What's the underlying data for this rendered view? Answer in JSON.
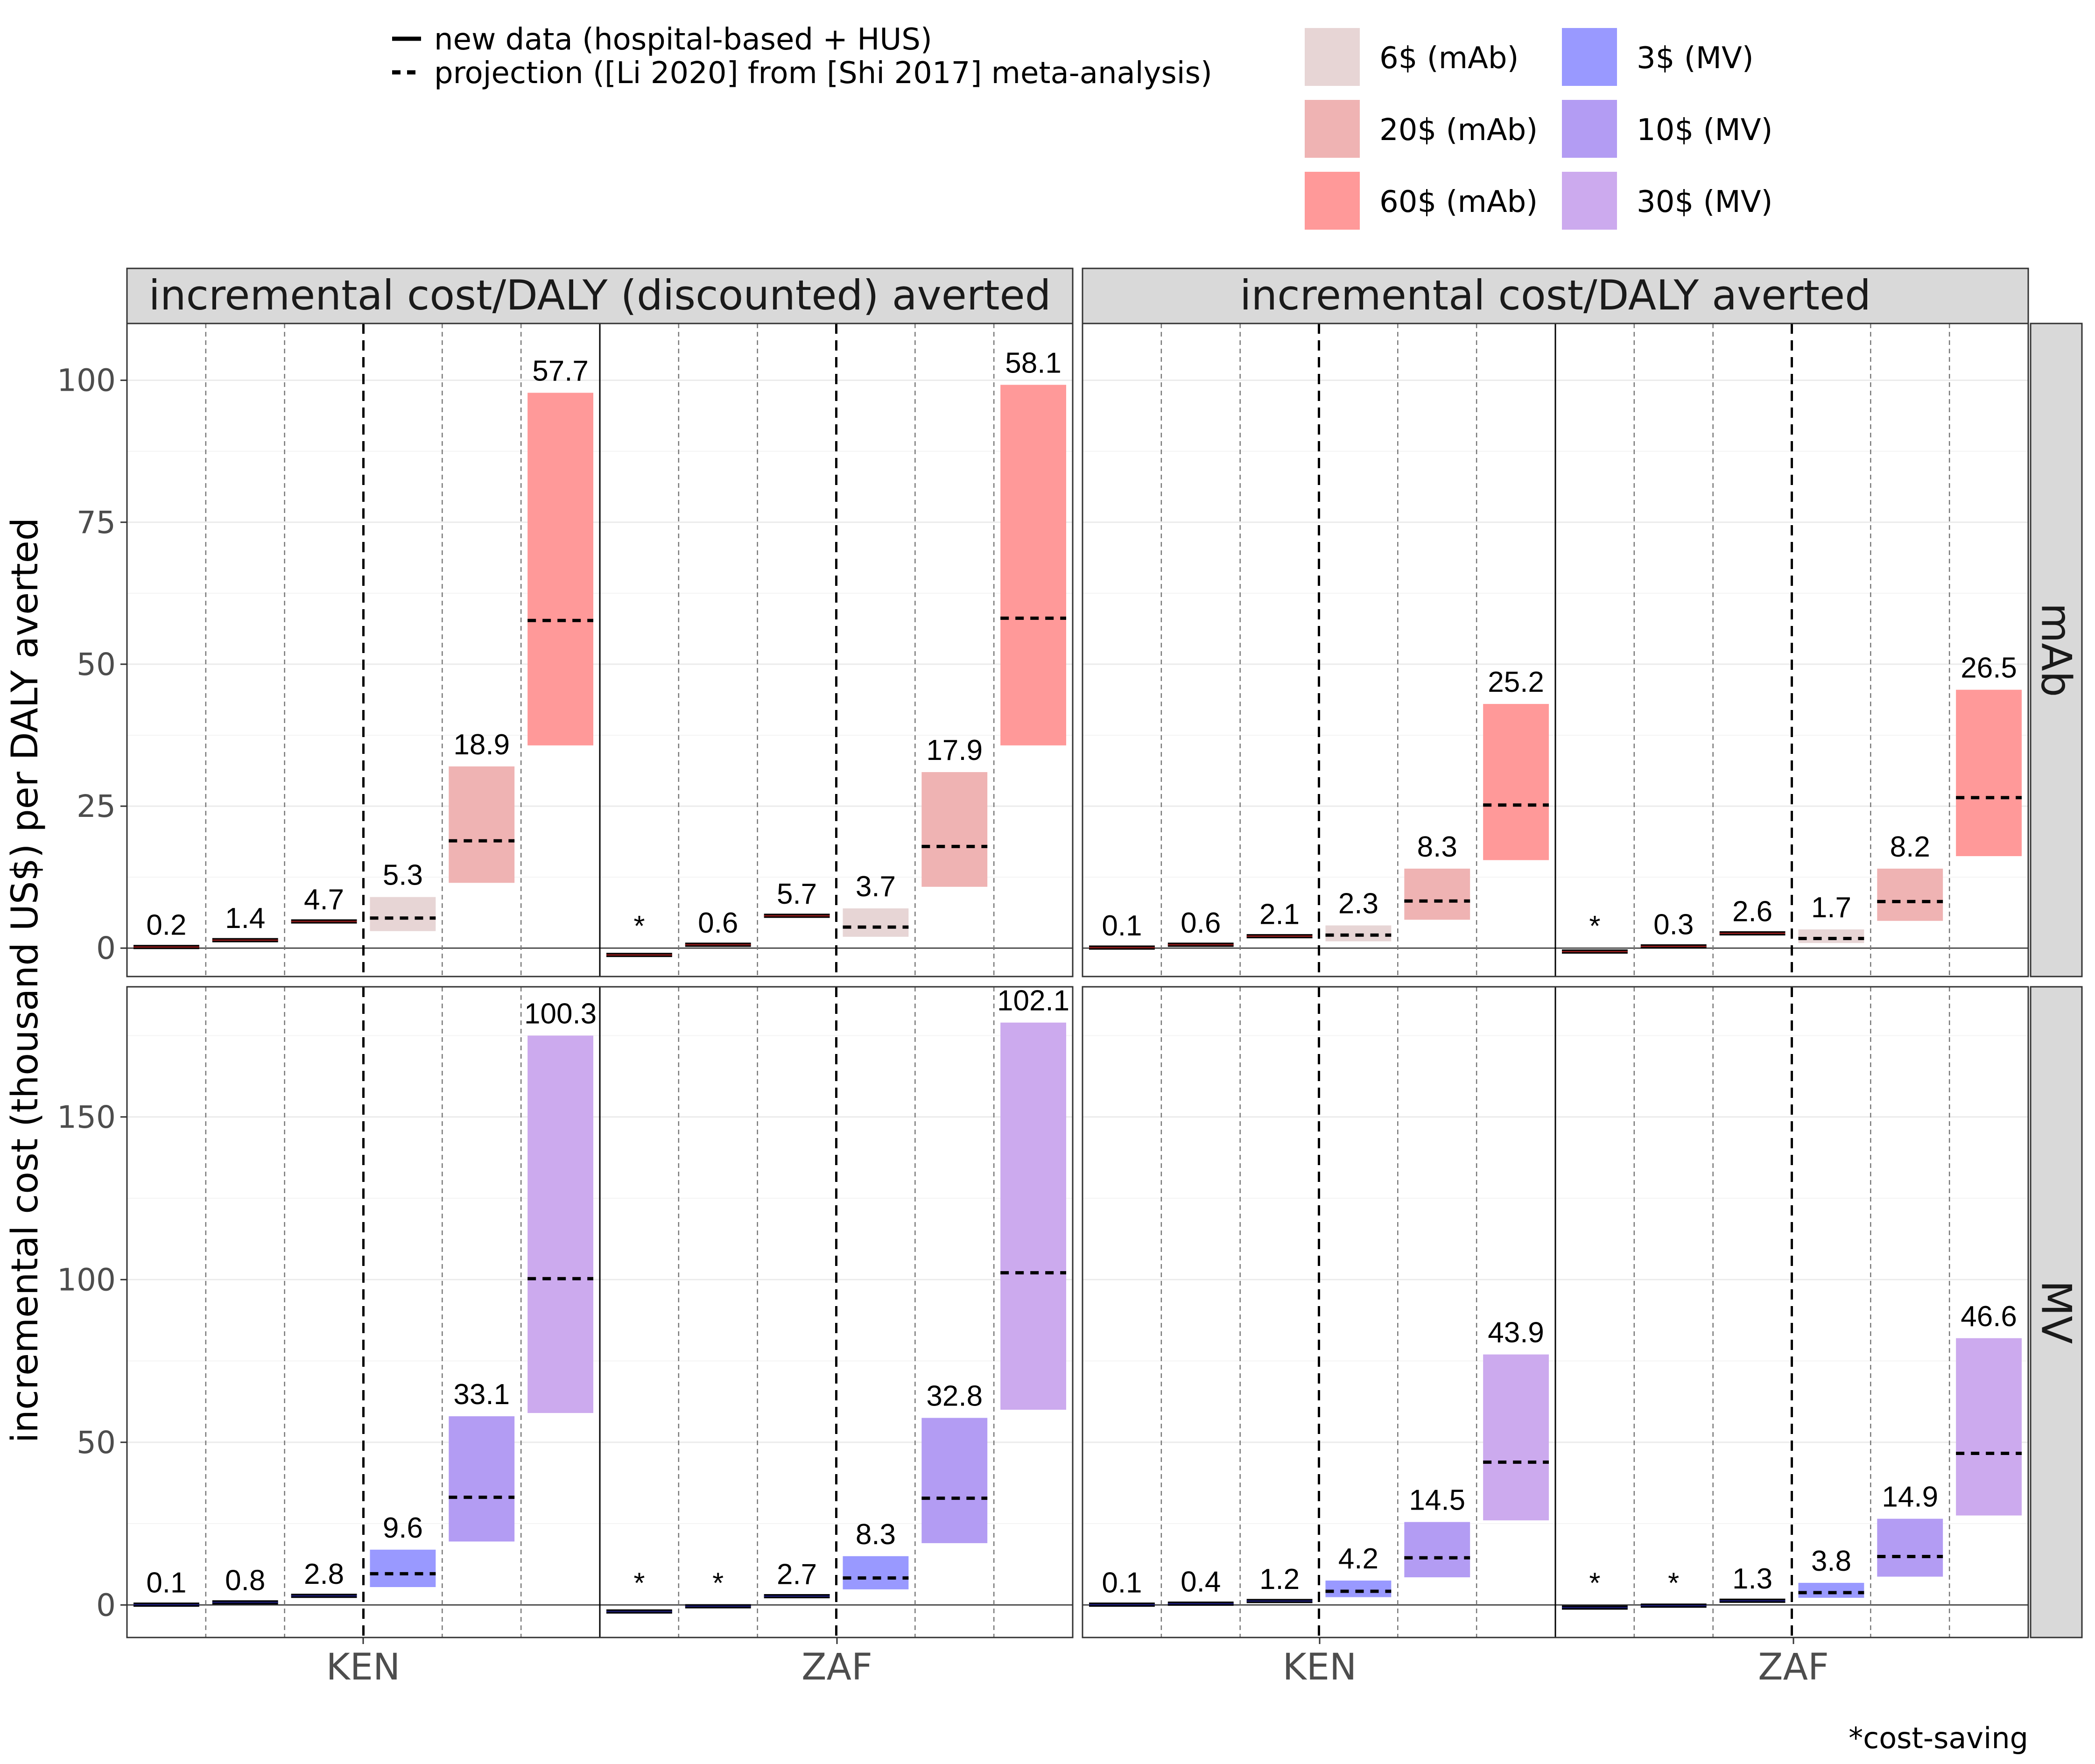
{
  "chart_data": {
    "type": "bar",
    "ylabel": "incremental cost (thousand US$) per DALY averted",
    "columns": [
      "incremental cost/DALY (discounted) averted",
      "incremental cost/DALY averted"
    ],
    "rows": [
      "mAb",
      "MV"
    ],
    "countries": [
      "KEN",
      "ZAF"
    ],
    "footnote": "*cost-saving",
    "ylim": {
      "mAb": [
        -5,
        110
      ],
      "MV": [
        -10,
        190
      ]
    },
    "yticks": {
      "mAb": [
        0,
        25,
        50,
        75,
        100
      ],
      "MV": [
        0,
        50,
        100,
        150
      ]
    },
    "legend_lines": [
      {
        "style": "solid",
        "label": "new data (hospital-based + HUS)"
      },
      {
        "style": "dashed",
        "label": "projection ([Li 2020] from [Shi 2017] meta-analysis)"
      }
    ],
    "legend_fills": [
      {
        "label": "6$ (mAb)",
        "color": "#e7d5d5"
      },
      {
        "label": "20$ (mAb)",
        "color": "#efb3b3"
      },
      {
        "label": "60$ (mAb)",
        "color": "#ff9999"
      },
      {
        "label": "3$ (MV)",
        "color": "#9999ff"
      },
      {
        "label": "10$ (MV)",
        "color": "#b39cf3"
      },
      {
        "label": "30$ (MV)",
        "color": "#ccaaee"
      }
    ],
    "panels": [
      {
        "column": "incremental cost/DALY (discounted) averted",
        "row": "mAb",
        "country": "KEN",
        "bars": [
          {
            "label": "0.2",
            "median": 0.2,
            "low": 0.2,
            "high": 0.2
          },
          {
            "label": "1.4",
            "median": 1.4,
            "low": 1.4,
            "high": 1.4
          },
          {
            "label": "4.7",
            "median": 4.7,
            "low": 4.7,
            "high": 4.7
          },
          {
            "label": "5.3",
            "median": 5.3,
            "low": 3.0,
            "high": 9.0
          },
          {
            "label": "18.9",
            "median": 18.9,
            "low": 11.5,
            "high": 32.0
          },
          {
            "label": "57.7",
            "median": 57.7,
            "low": 35.7,
            "high": 97.8
          }
        ]
      },
      {
        "column": "incremental cost/DALY (discounted) averted",
        "row": "mAb",
        "country": "ZAF",
        "bars": [
          {
            "label": "*",
            "median": -1.2,
            "low": -1.2,
            "high": -1.2
          },
          {
            "label": "0.6",
            "median": 0.6,
            "low": 0.6,
            "high": 0.6
          },
          {
            "label": "5.7",
            "median": 5.7,
            "low": 5.7,
            "high": 5.7
          },
          {
            "label": "3.7",
            "median": 3.7,
            "low": 2.0,
            "high": 7.0
          },
          {
            "label": "17.9",
            "median": 17.9,
            "low": 10.8,
            "high": 31.0
          },
          {
            "label": "58.1",
            "median": 58.1,
            "low": 35.7,
            "high": 99.2
          }
        ]
      },
      {
        "column": "incremental cost/DALY averted",
        "row": "mAb",
        "country": "KEN",
        "bars": [
          {
            "label": "0.1",
            "median": 0.1,
            "low": 0.1,
            "high": 0.1
          },
          {
            "label": "0.6",
            "median": 0.6,
            "low": 0.6,
            "high": 0.6
          },
          {
            "label": "2.1",
            "median": 2.1,
            "low": 2.1,
            "high": 2.1
          },
          {
            "label": "2.3",
            "median": 2.3,
            "low": 1.2,
            "high": 4.0
          },
          {
            "label": "8.3",
            "median": 8.3,
            "low": 5.0,
            "high": 14.0
          },
          {
            "label": "25.2",
            "median": 25.2,
            "low": 15.5,
            "high": 43.0
          }
        ]
      },
      {
        "column": "incremental cost/DALY averted",
        "row": "mAb",
        "country": "ZAF",
        "bars": [
          {
            "label": "*",
            "median": -0.6,
            "low": -0.6,
            "high": -0.6
          },
          {
            "label": "0.3",
            "median": 0.3,
            "low": 0.3,
            "high": 0.3
          },
          {
            "label": "2.6",
            "median": 2.6,
            "low": 2.6,
            "high": 2.6
          },
          {
            "label": "1.7",
            "median": 1.7,
            "low": 0.9,
            "high": 3.3
          },
          {
            "label": "8.2",
            "median": 8.2,
            "low": 4.8,
            "high": 14.0
          },
          {
            "label": "26.5",
            "median": 26.5,
            "low": 16.2,
            "high": 45.5
          }
        ]
      },
      {
        "column": "incremental cost/DALY (discounted) averted",
        "row": "MV",
        "country": "KEN",
        "bars": [
          {
            "label": "0.1",
            "median": 0.1,
            "low": 0.1,
            "high": 0.1
          },
          {
            "label": "0.8",
            "median": 0.8,
            "low": 0.8,
            "high": 0.8
          },
          {
            "label": "2.8",
            "median": 2.8,
            "low": 2.8,
            "high": 2.8
          },
          {
            "label": "9.6",
            "median": 9.6,
            "low": 5.5,
            "high": 17.0
          },
          {
            "label": "33.1",
            "median": 33.1,
            "low": 19.5,
            "high": 58.0
          },
          {
            "label": "100.3",
            "median": 100.3,
            "low": 59.0,
            "high": 175.0
          }
        ]
      },
      {
        "column": "incremental cost/DALY (discounted) averted",
        "row": "MV",
        "country": "ZAF",
        "bars": [
          {
            "label": "*",
            "median": -2.0,
            "low": -2.0,
            "high": -2.0
          },
          {
            "label": "*",
            "median": -0.4,
            "low": -0.4,
            "high": -0.4
          },
          {
            "label": "2.7",
            "median": 2.7,
            "low": 2.7,
            "high": 2.7
          },
          {
            "label": "8.3",
            "median": 8.3,
            "low": 4.8,
            "high": 15.0
          },
          {
            "label": "32.8",
            "median": 32.8,
            "low": 19.0,
            "high": 57.5
          },
          {
            "label": "102.1",
            "median": 102.1,
            "low": 60.0,
            "high": 179.0
          }
        ]
      },
      {
        "column": "incremental cost/DALY averted",
        "row": "MV",
        "country": "KEN",
        "bars": [
          {
            "label": "0.1",
            "median": 0.1,
            "low": 0.1,
            "high": 0.1
          },
          {
            "label": "0.4",
            "median": 0.4,
            "low": 0.4,
            "high": 0.4
          },
          {
            "label": "1.2",
            "median": 1.2,
            "low": 1.2,
            "high": 1.2
          },
          {
            "label": "4.2",
            "median": 4.2,
            "low": 2.4,
            "high": 7.5
          },
          {
            "label": "14.5",
            "median": 14.5,
            "low": 8.5,
            "high": 25.5
          },
          {
            "label": "43.9",
            "median": 43.9,
            "low": 26.0,
            "high": 77.0
          }
        ]
      },
      {
        "column": "incremental cost/DALY averted",
        "row": "MV",
        "country": "ZAF",
        "bars": [
          {
            "label": "*",
            "median": -0.8,
            "low": -0.8,
            "high": -0.8
          },
          {
            "label": "*",
            "median": -0.2,
            "low": -0.2,
            "high": -0.2
          },
          {
            "label": "1.3",
            "median": 1.3,
            "low": 1.3,
            "high": 1.3
          },
          {
            "label": "3.8",
            "median": 3.8,
            "low": 2.2,
            "high": 6.8
          },
          {
            "label": "14.9",
            "median": 14.9,
            "low": 8.7,
            "high": 26.5
          },
          {
            "label": "46.6",
            "median": 46.6,
            "low": 27.5,
            "high": 82.0
          }
        ]
      }
    ]
  }
}
